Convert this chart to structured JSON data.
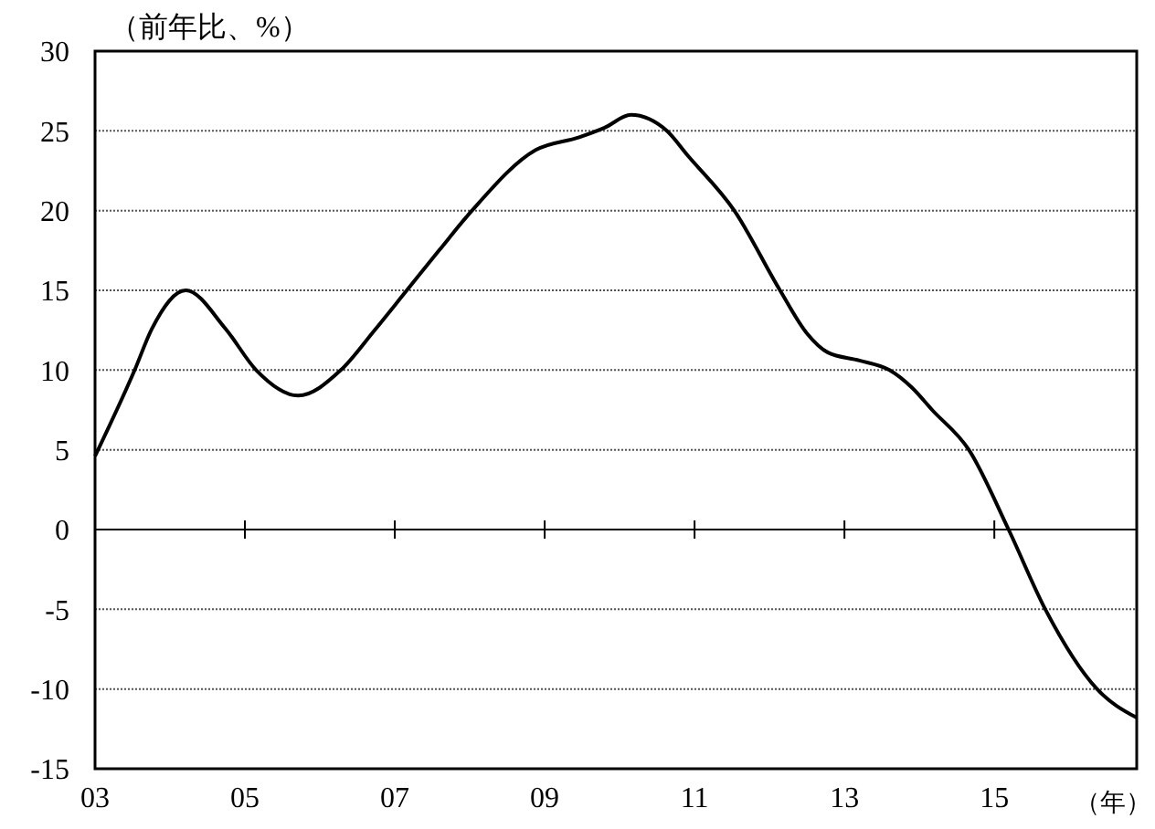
{
  "chart_data": {
    "type": "line",
    "ylabel": "（前年比、%）",
    "xlabel": "（年）",
    "x": [
      2003.0,
      2003.52,
      2003.76,
      2004.21,
      2004.74,
      2005.15,
      2005.71,
      2006.28,
      2006.73,
      2007.16,
      2007.59,
      2008.03,
      2008.88,
      2009.46,
      2009.8,
      2010.15,
      2010.63,
      2010.9,
      2011.53,
      2012.14,
      2012.5,
      2012.78,
      2013.2,
      2013.6,
      2013.9,
      2014.17,
      2014.66,
      2015.19,
      2015.68,
      2016.37,
      2016.9
    ],
    "series": [
      {
        "color": "#000000",
        "values": [
          4.6,
          9.9,
          12.6,
          15.0,
          12.6,
          10.0,
          8.4,
          10.0,
          12.5,
          15.0,
          17.5,
          20.0,
          23.8,
          24.6,
          25.2,
          26.0,
          25.0,
          23.5,
          20.0,
          15.0,
          12.3,
          11.1,
          10.6,
          10.0,
          8.9,
          7.5,
          5.0,
          0.0,
          -5.0,
          -10.0,
          -11.8
        ]
      }
    ],
    "xlim": [
      2003,
      2016.9
    ],
    "xticks": [
      {
        "value": 2003,
        "label": "03"
      },
      {
        "value": 2005,
        "label": "05"
      },
      {
        "value": 2007,
        "label": "07"
      },
      {
        "value": 2009,
        "label": "09"
      },
      {
        "value": 2011,
        "label": "11"
      },
      {
        "value": 2013,
        "label": "13"
      },
      {
        "value": 2015,
        "label": "15"
      }
    ],
    "ylim": [
      -15,
      30
    ],
    "yticks": [
      -15,
      -10,
      -5,
      0,
      5,
      10,
      15,
      20,
      25,
      30
    ],
    "grid": "y",
    "marker": "none",
    "line_style": "solid"
  }
}
